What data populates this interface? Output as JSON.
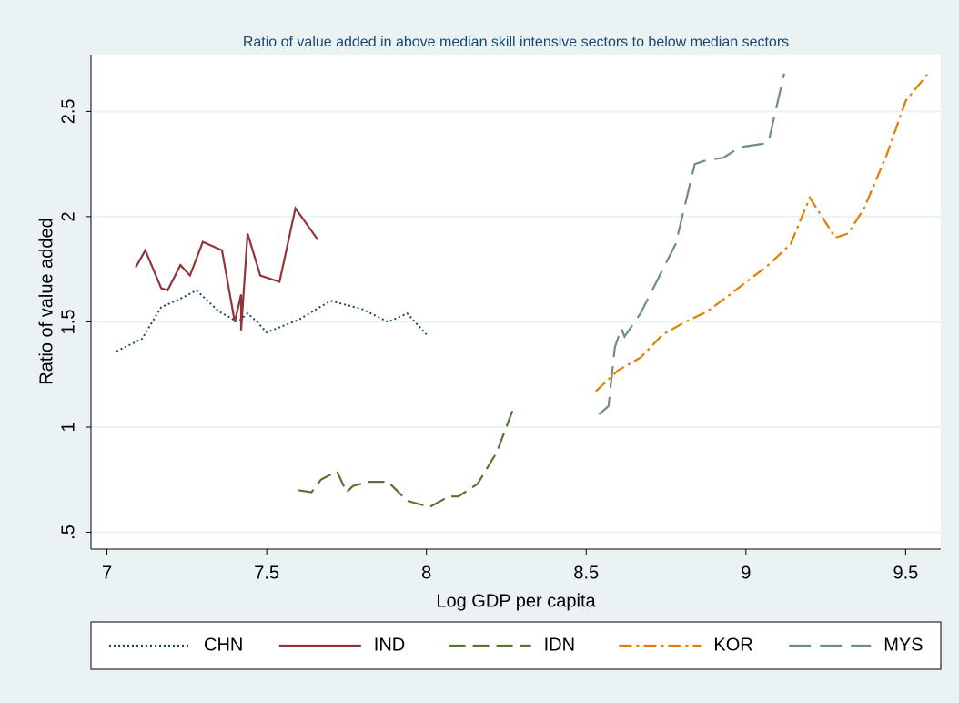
{
  "chart_data": {
    "type": "line",
    "title": "Ratio of value added in above median skill intensive sectors to below median sectors",
    "x_label": "Log GDP per capita",
    "y_label": "Ratio of value added",
    "xlim": [
      6.95,
      9.61
    ],
    "ylim": [
      0.42,
      2.77
    ],
    "xticks": [
      7,
      7.5,
      8,
      8.5,
      9,
      9.5
    ],
    "yticks": [
      {
        "value": 0.5,
        "label": ".5"
      },
      1,
      1.5,
      2,
      2.5
    ],
    "grid": true,
    "legend": "bottom",
    "series": [
      {
        "name": "CHN",
        "color": "#1a476f",
        "style": "dot",
        "x": [
          7.03,
          7.11,
          7.17,
          7.23,
          7.28,
          7.35,
          7.41,
          7.44,
          7.47,
          7.5,
          7.6,
          7.7,
          7.8,
          7.88,
          7.94,
          8.0
        ],
        "values": [
          1.36,
          1.42,
          1.57,
          1.61,
          1.65,
          1.55,
          1.5,
          1.54,
          1.5,
          1.45,
          1.51,
          1.6,
          1.56,
          1.5,
          1.54,
          1.44
        ]
      },
      {
        "name": "IND",
        "color": "#90353b",
        "style": "solid",
        "x": [
          7.09,
          7.12,
          7.17,
          7.19,
          7.23,
          7.26,
          7.3,
          7.36,
          7.4,
          7.42,
          7.42,
          7.44,
          7.48,
          7.54,
          7.59,
          7.66
        ],
        "values": [
          1.76,
          1.84,
          1.66,
          1.65,
          1.77,
          1.72,
          1.88,
          1.84,
          1.5,
          1.63,
          1.46,
          1.92,
          1.72,
          1.69,
          2.04,
          1.89
        ]
      },
      {
        "name": "IDN",
        "color": "#55752f",
        "style": "dash",
        "x": [
          7.6,
          7.64,
          7.67,
          7.72,
          7.75,
          7.77,
          7.82,
          7.88,
          7.94,
          8.01,
          8.07,
          8.1,
          8.16,
          8.22,
          8.27
        ],
        "values": [
          0.7,
          0.69,
          0.75,
          0.79,
          0.69,
          0.72,
          0.74,
          0.74,
          0.65,
          0.62,
          0.67,
          0.67,
          0.73,
          0.88,
          1.08
        ]
      },
      {
        "name": "KOR",
        "color": "#e37e00",
        "style": "dash_dot",
        "x": [
          8.53,
          8.6,
          8.67,
          8.74,
          8.81,
          8.88,
          8.95,
          9.07,
          9.14,
          9.2,
          9.28,
          9.32,
          9.37,
          9.44,
          9.5,
          9.57
        ],
        "values": [
          1.17,
          1.27,
          1.33,
          1.44,
          1.5,
          1.55,
          1.63,
          1.77,
          1.87,
          2.09,
          1.9,
          1.92,
          2.04,
          2.29,
          2.55,
          2.68
        ]
      },
      {
        "name": "MYS",
        "color": "#6e8e84",
        "style": "long_dash",
        "x": [
          8.54,
          8.57,
          8.59,
          8.61,
          8.62,
          8.67,
          8.73,
          8.78,
          8.84,
          8.88,
          8.93,
          8.98,
          9.07,
          9.12
        ],
        "values": [
          1.06,
          1.1,
          1.38,
          1.47,
          1.43,
          1.54,
          1.72,
          1.87,
          2.25,
          2.27,
          2.28,
          2.33,
          2.35,
          2.68
        ]
      }
    ]
  }
}
